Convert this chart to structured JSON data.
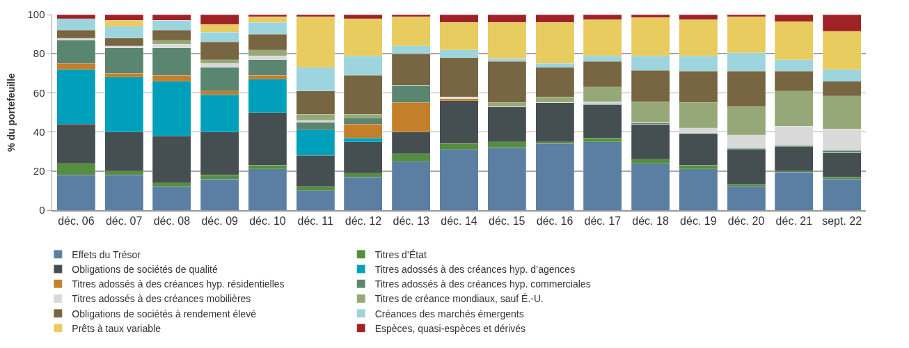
{
  "chart_data": {
    "type": "bar",
    "stacked": true,
    "ylabel": "% du portefeuille",
    "ylim": [
      0,
      100
    ],
    "yticks": [
      0,
      20,
      40,
      60,
      80,
      100
    ],
    "grid": "y",
    "legend": "bottom",
    "categories": [
      "déc. 06",
      "déc. 07",
      "déc. 08",
      "déc. 09",
      "déc. 10",
      "déc. 11",
      "déc. 12",
      "déc. 13",
      "déc. 14",
      "déc. 15",
      "déc. 16",
      "déc. 17",
      "déc. 18",
      "déc. 19",
      "déc. 20",
      "déc. 21",
      "sept. 22"
    ],
    "series": [
      {
        "name": "Effets du Trésor",
        "color": "#5b7fa3",
        "values": [
          18,
          18,
          12,
          16,
          21,
          10,
          17,
          25,
          31,
          32,
          34,
          35,
          24,
          21,
          12,
          19.5,
          16
        ]
      },
      {
        "name": "Titres d’État",
        "color": "#568e3f",
        "values": [
          6,
          2,
          2,
          2,
          2,
          2,
          2,
          4,
          3,
          3,
          1,
          2,
          2,
          2,
          1,
          0.5,
          1
        ]
      },
      {
        "name": "Obligations de sociétés de qualité",
        "color": "#454f52",
        "values": [
          20,
          20,
          24,
          22,
          27,
          16,
          16,
          11,
          22,
          18,
          20,
          17,
          18,
          16.5,
          18,
          12.5,
          12.5
        ]
      },
      {
        "name": "Titres adossés à des créances hyp. d’agences",
        "color": "#00a0bc",
        "values": [
          28,
          28,
          28,
          19,
          17,
          13,
          2,
          0,
          0,
          0,
          0,
          0,
          0,
          0,
          0,
          0,
          0
        ]
      },
      {
        "name": "Titres adossés à des créances hyp. résidentielles",
        "color": "#c47f2a",
        "values": [
          3,
          2,
          3,
          2,
          2,
          0,
          7,
          15,
          1,
          0,
          0,
          0,
          0,
          0,
          0,
          0,
          0
        ]
      },
      {
        "name": "Titres adossés à des créances hyp. commerciales",
        "color": "#5a8570",
        "values": [
          12,
          13,
          14,
          12,
          8,
          4,
          3,
          9,
          0,
          0,
          0,
          0.5,
          0.5,
          0,
          0.5,
          0.5,
          1
        ]
      },
      {
        "name": "Titres adossés à des créances mobilières",
        "color": "#d9d9d9",
        "values": [
          1,
          1,
          2,
          2,
          2,
          1,
          0,
          0,
          1,
          0,
          0,
          1,
          0.5,
          2.5,
          7,
          10,
          11
        ]
      },
      {
        "name": "Titres de créance mondiaux, sauf É.-U.",
        "color": "#96a878",
        "values": [
          0,
          0,
          2,
          2,
          3,
          3,
          2,
          0,
          0,
          2,
          3,
          7.5,
          10.5,
          13,
          14.5,
          18,
          17
        ]
      },
      {
        "name": "Obligations de sociétés à rendement élevé",
        "color": "#786541",
        "values": [
          4,
          4,
          5,
          9,
          8,
          12,
          20,
          16,
          20,
          21,
          15,
          13,
          16,
          16,
          18,
          10,
          7.5
        ]
      },
      {
        "name": "Créances des marchés émergents",
        "color": "#9cd5dd",
        "values": [
          6,
          6,
          5,
          5,
          6,
          12,
          10,
          4,
          4,
          1.5,
          2,
          3,
          7.5,
          8,
          9.5,
          6,
          6
        ]
      },
      {
        "name": "Prêts à taux variable",
        "color": "#e8cc60",
        "values": [
          0,
          3,
          0,
          4,
          3,
          26,
          19,
          15,
          14,
          18.5,
          21,
          18.5,
          19.5,
          18.5,
          18.5,
          19.5,
          19.5
        ]
      },
      {
        "name": "Espèces, quasi-espèces et dérivés",
        "color": "#a02226",
        "values": [
          2,
          3,
          3,
          5,
          1,
          1,
          2,
          1,
          4,
          4,
          4,
          2.5,
          1.5,
          2.5,
          1,
          3.5,
          8.5
        ]
      }
    ]
  }
}
